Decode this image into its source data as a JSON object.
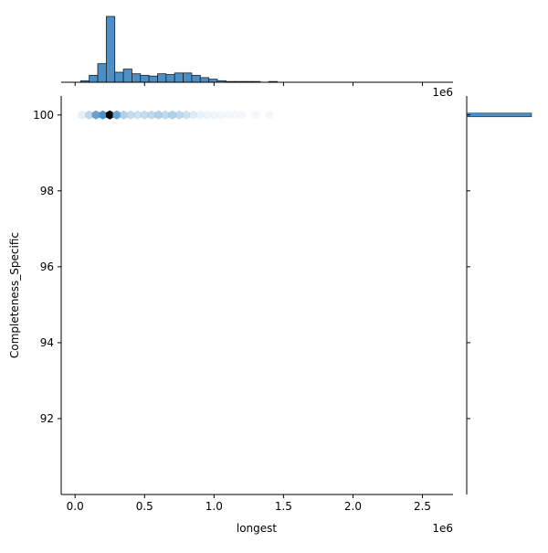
{
  "chart_data": {
    "type": "hexbin-jointplot",
    "xlabel": "longest",
    "ylabel": "Completeness_Specific",
    "x_offset_text": "1e6",
    "top_offset_text": "1e6",
    "xlim": [
      -0.1,
      2.72
    ],
    "ylim": [
      90.0,
      100.5
    ],
    "x_ticks": [
      0.0,
      0.5,
      1.0,
      1.5,
      2.0,
      2.5
    ],
    "x_tick_labels": [
      "0.0",
      "0.5",
      "1.0",
      "1.5",
      "2.0",
      "2.5"
    ],
    "y_ticks": [
      92,
      94,
      96,
      98,
      100
    ],
    "y_tick_labels": [
      "92",
      "94",
      "96",
      "98",
      "100"
    ],
    "hexbins": {
      "y": 100,
      "x": [
        0.05,
        0.1,
        0.15,
        0.2,
        0.25,
        0.3,
        0.35,
        0.4,
        0.45,
        0.5,
        0.55,
        0.6,
        0.65,
        0.7,
        0.75,
        0.8,
        0.85,
        0.9,
        0.95,
        1.0,
        1.05,
        1.1,
        1.15,
        1.2,
        1.3,
        1.4
      ],
      "counts": [
        0.1,
        0.22,
        0.4,
        0.5,
        1.0,
        0.4,
        0.25,
        0.2,
        0.18,
        0.2,
        0.22,
        0.25,
        0.22,
        0.25,
        0.22,
        0.18,
        0.12,
        0.08,
        0.06,
        0.05,
        0.04,
        0.03,
        0.03,
        0.03,
        0.02,
        0.02
      ]
    },
    "top_histogram": {
      "bin_width": 0.0615,
      "bin_starts": [
        0.04,
        0.1015,
        0.163,
        0.2245,
        0.286,
        0.3475,
        0.409,
        0.4705,
        0.532,
        0.5935,
        0.655,
        0.7165,
        0.778,
        0.8395,
        0.901,
        0.9625,
        1.024,
        1.0855,
        1.147,
        1.2085,
        1.27,
        1.3315,
        1.393,
        1.4545
      ],
      "counts": [
        2,
        9,
        24,
        85,
        13,
        17,
        11,
        9,
        8,
        11,
        10,
        12,
        12,
        9,
        6,
        4,
        2,
        1,
        1,
        1,
        1,
        0,
        1,
        0
      ]
    },
    "right_histogram": {
      "y_value": 100,
      "note": "single bin at 100"
    },
    "colors": {
      "hist_fill": "#4c8fc6",
      "hist_edge": "#1f1f1f",
      "hex_max": "#000000",
      "hex_low": "#d8e8f5"
    }
  }
}
